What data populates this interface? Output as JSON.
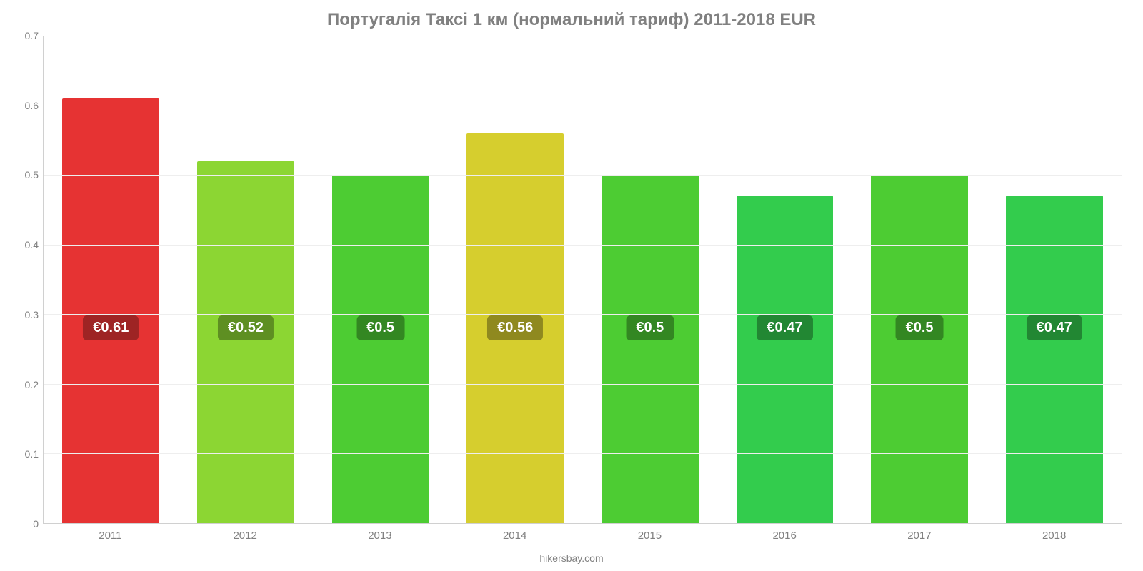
{
  "chart": {
    "type": "bar",
    "title": "Португалія Таксі 1 км (нормальний тариф) 2011-2018 EUR",
    "title_color": "#808080",
    "title_fontsize": 24,
    "footer": "hikersbay.com",
    "background_color": "#ffffff",
    "grid_color": "#eeeeee",
    "axis_line_color": "#d0d0d0",
    "tick_label_color": "#808080",
    "tick_label_fontsize": 14,
    "ylim": [
      0,
      0.7
    ],
    "yticks": [
      0,
      0.1,
      0.2,
      0.3,
      0.4,
      0.5,
      0.6,
      0.7
    ],
    "ytick_labels": [
      "0",
      "0.1",
      "0.2",
      "0.3",
      "0.4",
      "0.5",
      "0.6",
      "0.7"
    ],
    "categories": [
      "2011",
      "2012",
      "2013",
      "2014",
      "2015",
      "2016",
      "2017",
      "2018"
    ],
    "values": [
      0.61,
      0.52,
      0.5,
      0.56,
      0.5,
      0.47,
      0.5,
      0.47
    ],
    "value_labels": [
      "€0.61",
      "€0.52",
      "€0.5",
      "€0.56",
      "€0.5",
      "€0.47",
      "€0.5",
      "€0.47"
    ],
    "bar_colors": [
      "#e63333",
      "#8cd633",
      "#4dcc33",
      "#d6ce2e",
      "#4dcc33",
      "#33cc4d",
      "#4dcc33",
      "#33cc4d"
    ],
    "label_bg_colors": [
      "#9e2424",
      "#5e8f22",
      "#338722",
      "#8f891f",
      "#338722",
      "#228733",
      "#338722",
      "#228733"
    ],
    "bar_width_pct": 72,
    "bar_label_fontsize": 20,
    "bar_label_color": "#ffffff",
    "bar_label_center_value": 0.28
  }
}
